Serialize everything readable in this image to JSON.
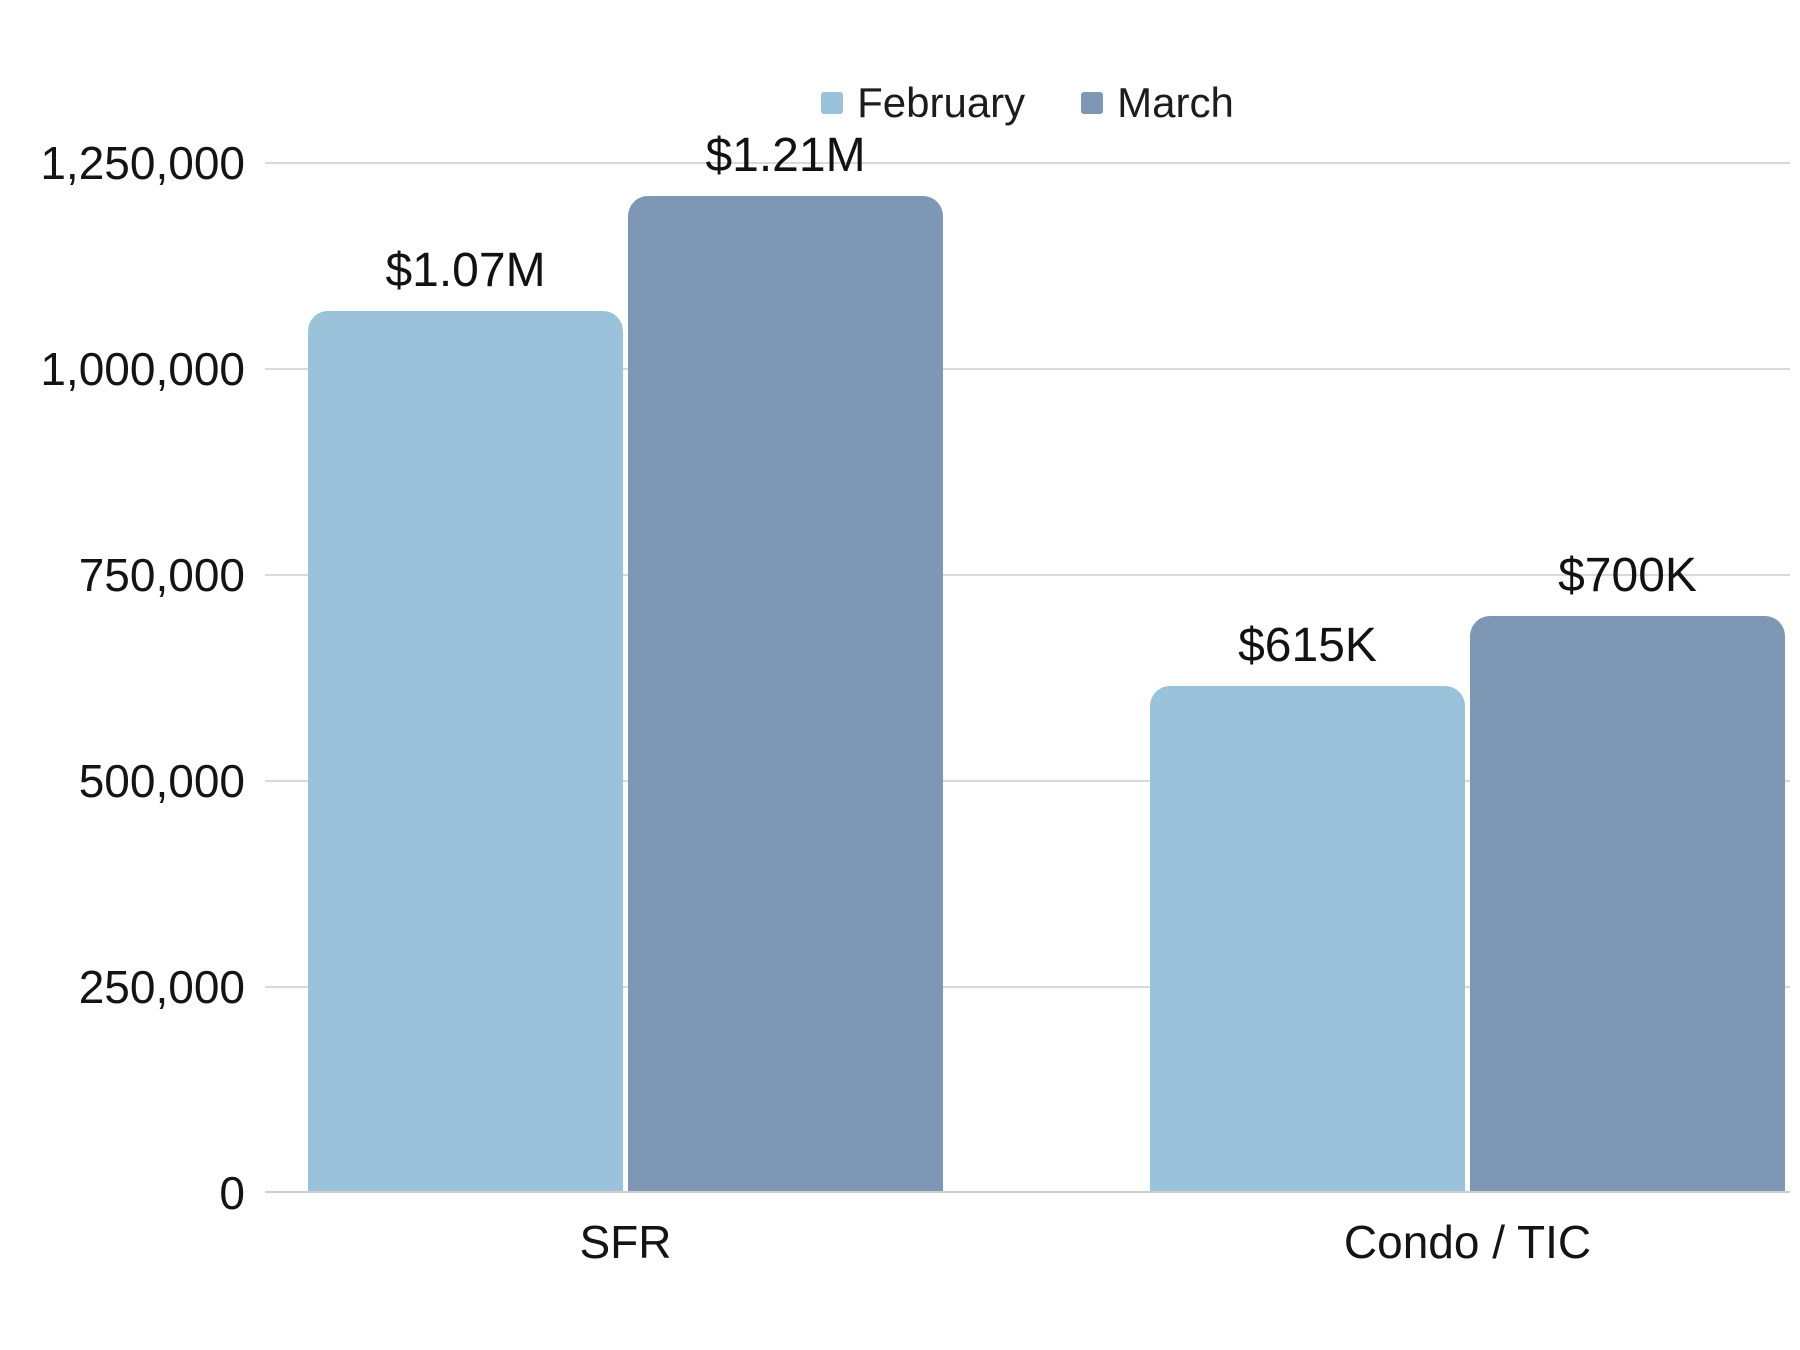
{
  "chart_data": {
    "type": "bar",
    "title": "",
    "categories": [
      "SFR",
      "Condo / TIC"
    ],
    "series": [
      {
        "name": "February",
        "color": "#9AC2DB",
        "values": [
          1070000,
          615000
        ],
        "value_labels": [
          "$1.07M",
          "$615K"
        ]
      },
      {
        "name": "March",
        "color": "#7E97B4",
        "values": [
          1210000,
          700000
        ],
        "value_labels": [
          "$1.21M",
          "$700K"
        ]
      }
    ],
    "ylim": [
      0,
      1250000
    ],
    "y_ticks": [
      {
        "value": 0,
        "label": "0"
      },
      {
        "value": 250000,
        "label": "250,000"
      },
      {
        "value": 500000,
        "label": "500,000"
      },
      {
        "value": 750000,
        "label": "750,000"
      },
      {
        "value": 1000000,
        "label": "1,000,000"
      },
      {
        "value": 1250000,
        "label": "1,250,000"
      }
    ],
    "grid": true,
    "legend_position": "top-center",
    "colors": {
      "grid": "#D9D9D9",
      "axis_line": "#CFCFCF",
      "text": "#141414"
    }
  }
}
